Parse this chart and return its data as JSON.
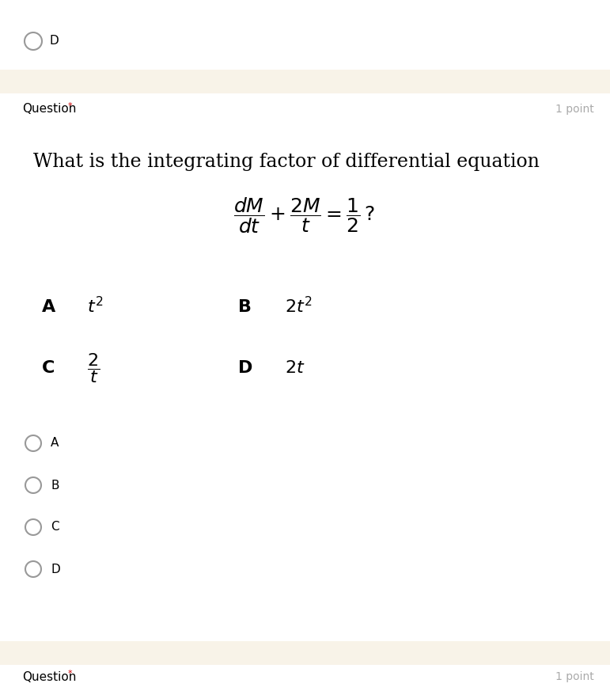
{
  "bg_color": "#ffffff",
  "separator_color": "#f8f3e8",
  "question_label": "Question",
  "asterisk": "*",
  "point_label": "1 point",
  "question_text": "What is the integrating factor of differential equation",
  "radio_labels": [
    "A",
    "B",
    "C",
    "D"
  ],
  "top_circle_label": "D",
  "label_color": "#000000",
  "asterisk_color": "#cc0000",
  "font_size_question": 11,
  "font_size_point": 10,
  "font_size_body": 15,
  "font_size_eq": 18,
  "font_size_opts": 15,
  "font_size_radio": 11
}
